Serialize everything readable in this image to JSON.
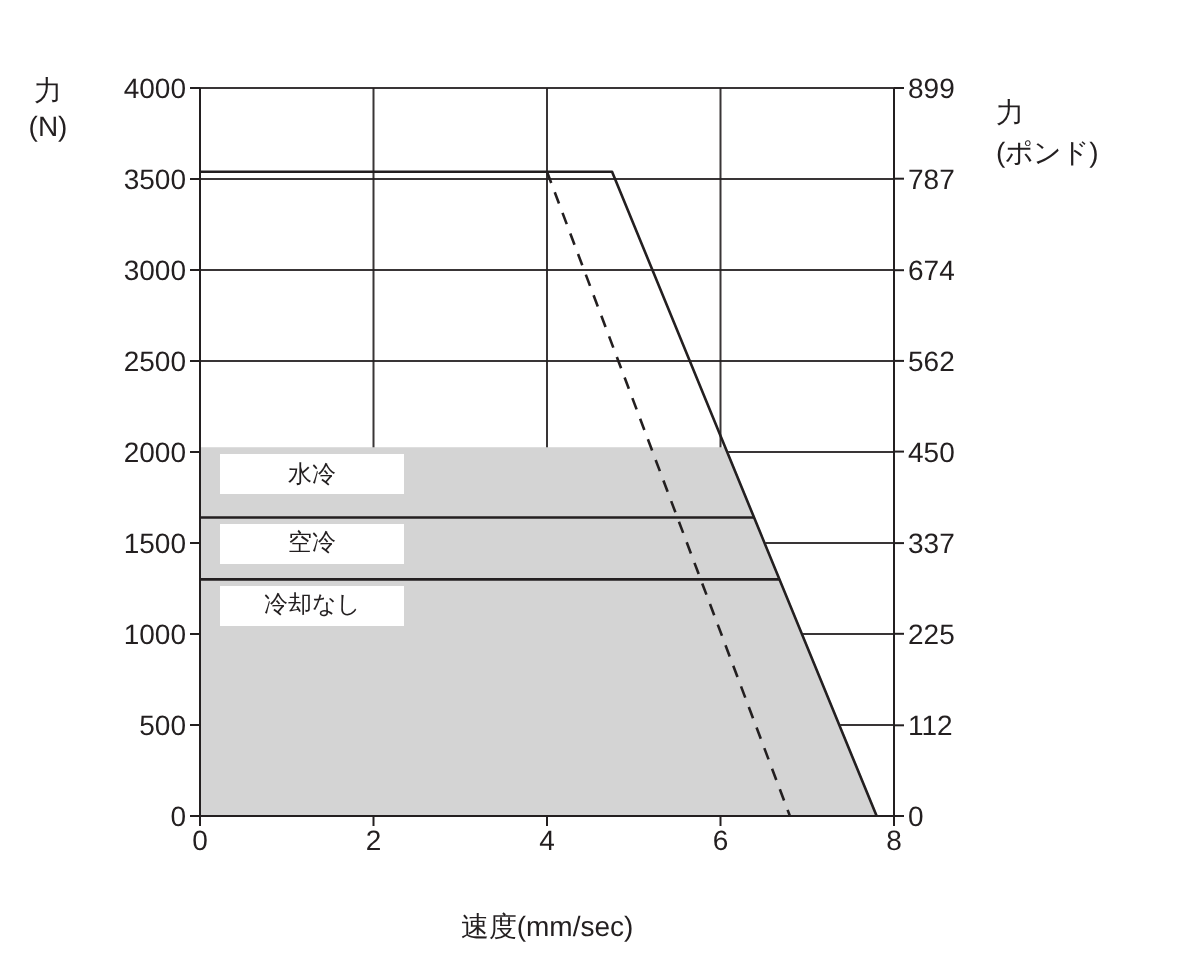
{
  "chart_data": {
    "type": "line",
    "xlabel": "速度(mm/sec)",
    "ylabel": "力\n(N)",
    "y2label": "力\n(ポンド)",
    "series": [
      {
        "name": "水冷",
        "type": "area",
        "color": "#d4d4d4",
        "x": [
          0,
          6.06,
          7.8
        ],
        "values": [
          2020,
          2020,
          0
        ]
      },
      {
        "name": "空冷",
        "color": "#231f20",
        "x": [
          0,
          6.39
        ],
        "values": [
          1640,
          1640
        ]
      },
      {
        "name": "冷却なし",
        "color": "#231f20",
        "x": [
          0,
          6.68
        ],
        "values": [
          1300,
          1300
        ]
      },
      {
        "color": "#231f20",
        "x": [
          0,
          4.75,
          7.8
        ],
        "values": [
          3540,
          3540,
          0
        ]
      },
      {
        "color": "#231f20",
        "line_style": "dashed",
        "x": [
          4,
          6.8
        ],
        "values": [
          3540,
          0
        ]
      }
    ],
    "xlim": [
      0,
      8
    ],
    "xticks": [
      0,
      2,
      4,
      6,
      8
    ],
    "ylim": [
      0,
      4000
    ],
    "yticks": [
      0,
      500,
      1000,
      1500,
      2000,
      2500,
      3000,
      3500,
      4000
    ],
    "y2lim": [
      0,
      899
    ],
    "y2ticks": [
      0,
      112,
      225,
      337,
      450,
      562,
      674,
      787,
      899
    ],
    "grid": true,
    "marker": "none"
  }
}
